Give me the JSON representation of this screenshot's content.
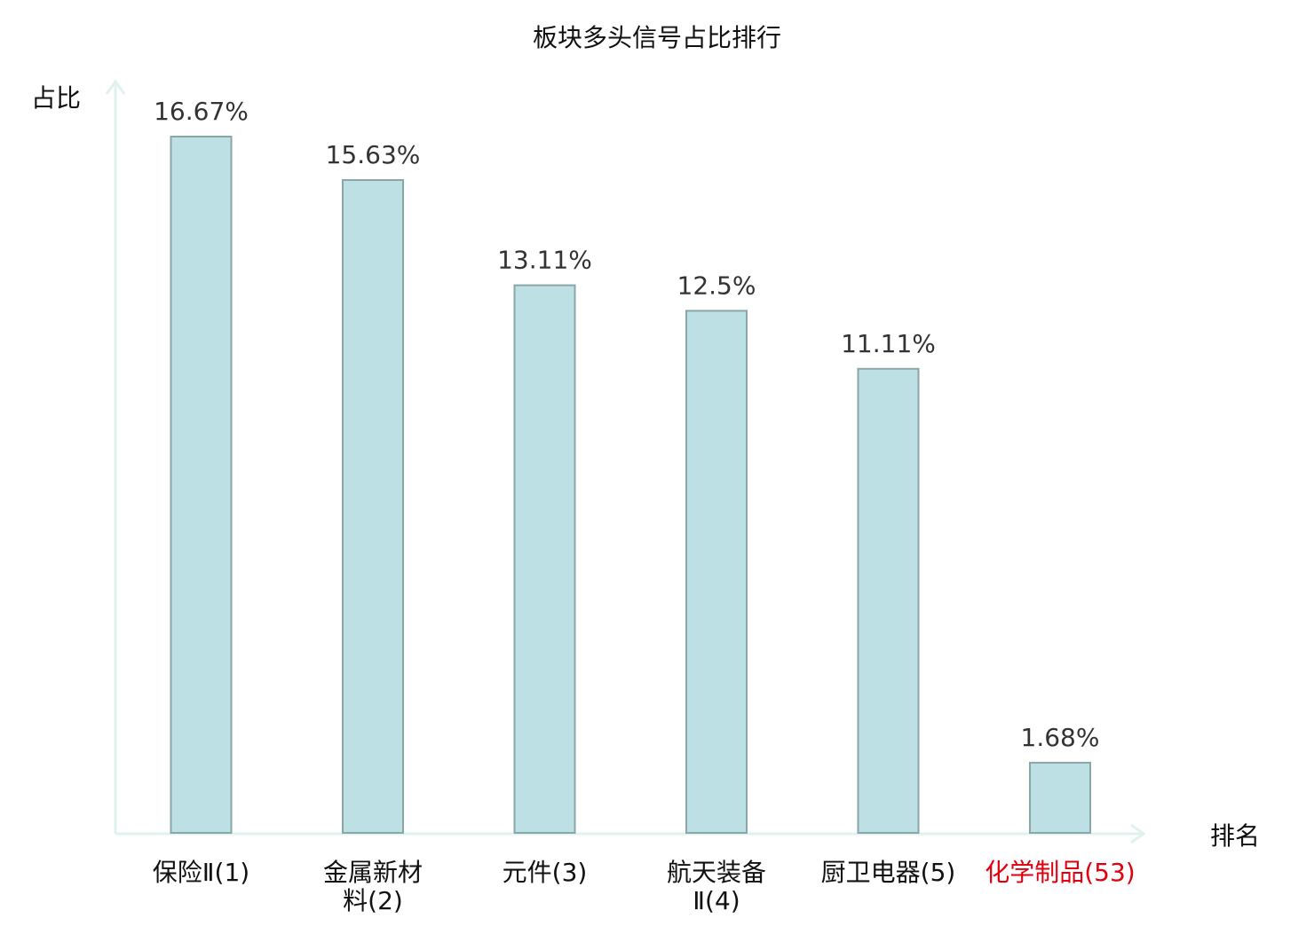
{
  "chart_data": {
    "type": "bar",
    "title": "板块多头信号占比排行",
    "xlabel": "排名",
    "ylabel": "占比",
    "categories": [
      {
        "lines": [
          "保险Ⅱ(1)"
        ],
        "highlight": false
      },
      {
        "lines": [
          "金属新材",
          "料(2)"
        ],
        "highlight": false
      },
      {
        "lines": [
          "元件(3)"
        ],
        "highlight": false
      },
      {
        "lines": [
          "航天装备",
          "Ⅱ(4)"
        ],
        "highlight": false
      },
      {
        "lines": [
          "厨卫电器(5)"
        ],
        "highlight": false
      },
      {
        "lines": [
          "化学制品(53)"
        ],
        "highlight": true
      }
    ],
    "values": [
      16.67,
      15.63,
      13.11,
      12.5,
      11.11,
      1.68
    ],
    "value_labels": [
      "16.67%",
      "15.63%",
      "13.11%",
      "12.5%",
      "11.11%",
      "1.68%"
    ],
    "ylim": [
      0,
      16.67
    ],
    "grid": false,
    "legend": "none",
    "colors": {
      "bar_fill": "#bce0e3",
      "bar_stroke": "#8aa6a8",
      "axis": "#e0f2ef",
      "text": "#333333",
      "title_text": "#111111",
      "highlight_text": "#e0000e"
    }
  }
}
